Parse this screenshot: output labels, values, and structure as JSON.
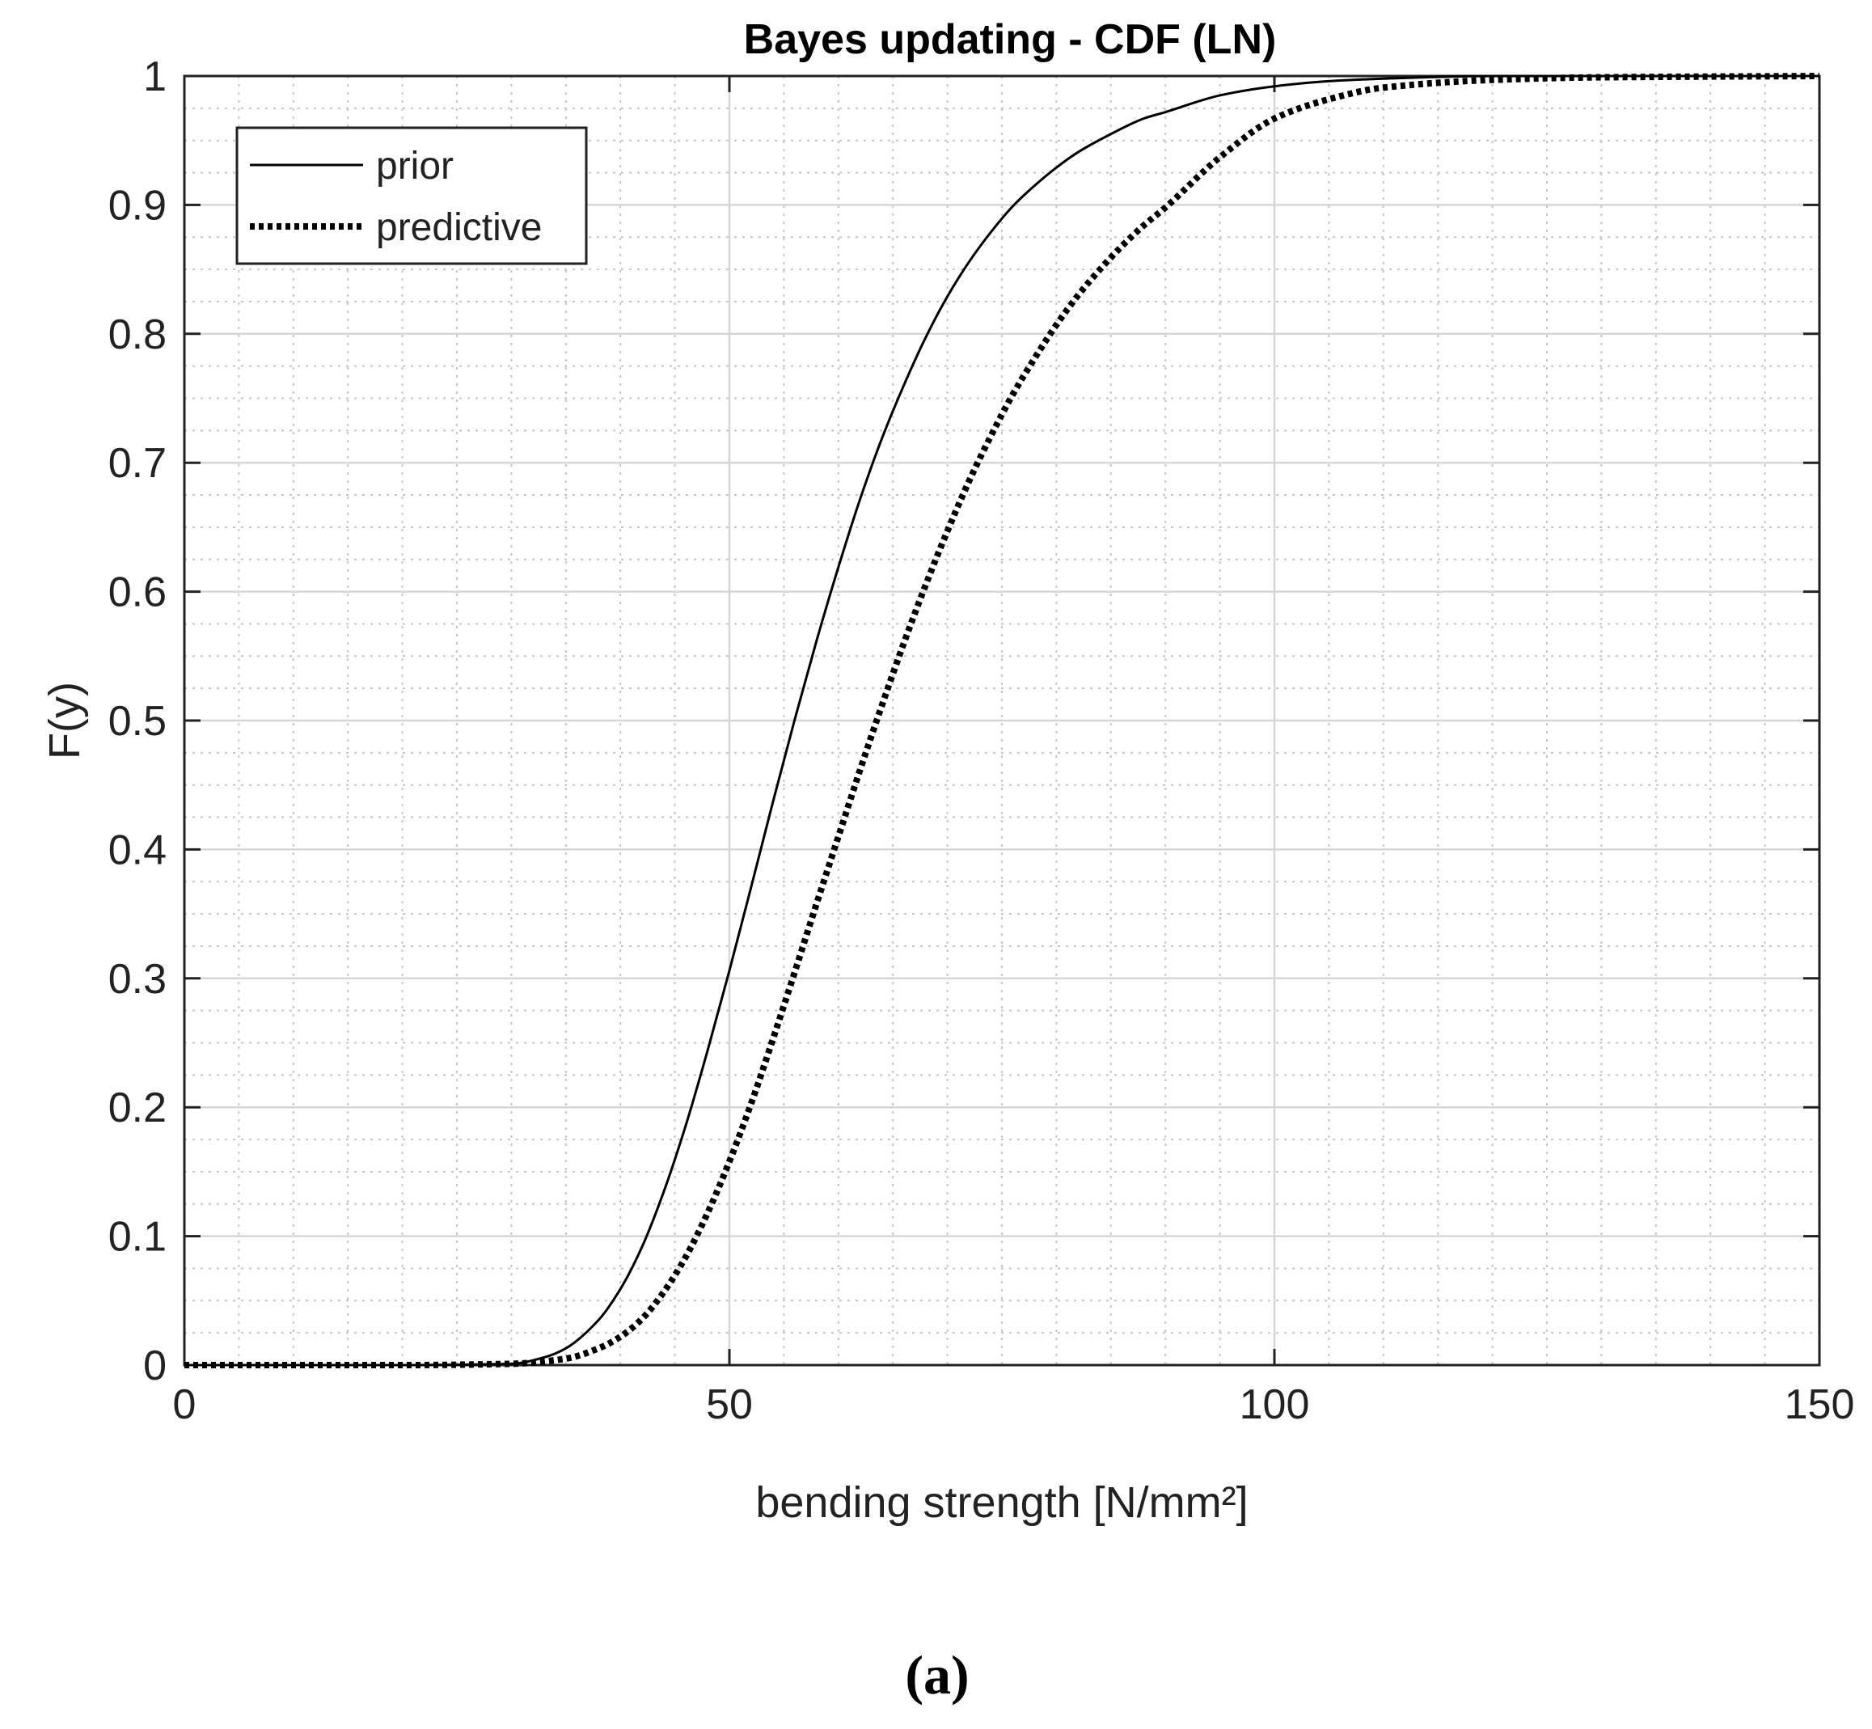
{
  "chart_data": {
    "type": "line",
    "title": "Bayes updating - CDF (LN)",
    "xlabel": "bending strength [N/mm²]",
    "ylabel": "F(y)",
    "xlim": [
      0,
      150
    ],
    "ylim": [
      0,
      1
    ],
    "xticks": [
      0,
      50,
      100,
      150
    ],
    "xtick_labels": [
      "0",
      "50",
      "100",
      "150"
    ],
    "yticks": [
      0,
      0.1,
      0.2,
      0.3,
      0.4,
      0.5,
      0.6,
      0.7,
      0.8,
      0.9,
      1
    ],
    "ytick_labels": [
      "0",
      "0.1",
      "0.2",
      "0.3",
      "0.4",
      "0.5",
      "0.6",
      "0.7",
      "0.8",
      "0.9",
      "1"
    ],
    "grid": true,
    "minor_grid": true,
    "legend_position": "top-left",
    "series": [
      {
        "name": "prior",
        "style": "solid",
        "color": "#000000",
        "x": [
          0,
          20,
          30,
          33,
          35,
          38,
          40,
          42,
          44,
          46,
          48,
          50,
          52,
          54,
          56,
          58,
          60,
          62,
          64,
          66,
          68,
          70,
          72,
          74,
          76,
          78,
          80,
          82,
          85,
          88,
          90,
          95,
          100,
          105,
          110,
          120,
          150
        ],
        "y": [
          0,
          0,
          0.001,
          0.006,
          0.013,
          0.035,
          0.059,
          0.092,
          0.135,
          0.186,
          0.244,
          0.306,
          0.371,
          0.437,
          0.501,
          0.562,
          0.619,
          0.672,
          0.719,
          0.76,
          0.797,
          0.829,
          0.856,
          0.879,
          0.899,
          0.915,
          0.929,
          0.941,
          0.955,
          0.967,
          0.972,
          0.985,
          0.992,
          0.996,
          0.998,
          1.0,
          1.0
        ]
      },
      {
        "name": "predictive",
        "style": "dotted",
        "color": "#000000",
        "x": [
          0,
          20,
          30,
          35,
          38,
          40,
          42,
          44,
          46,
          48,
          50,
          52,
          54,
          56,
          58,
          60,
          62,
          64,
          66,
          68,
          70,
          72,
          74,
          76,
          78,
          80,
          82,
          84,
          86,
          88,
          90,
          95,
          100,
          105,
          110,
          120,
          130,
          150
        ],
        "y": [
          0,
          0,
          0.001,
          0.005,
          0.013,
          0.022,
          0.036,
          0.057,
          0.084,
          0.118,
          0.158,
          0.203,
          0.253,
          0.305,
          0.358,
          0.41,
          0.462,
          0.512,
          0.56,
          0.605,
          0.647,
          0.686,
          0.721,
          0.753,
          0.781,
          0.807,
          0.83,
          0.85,
          0.868,
          0.884,
          0.898,
          0.937,
          0.967,
          0.982,
          0.991,
          0.997,
          0.999,
          1.0
        ]
      }
    ]
  },
  "caption": "(a)"
}
